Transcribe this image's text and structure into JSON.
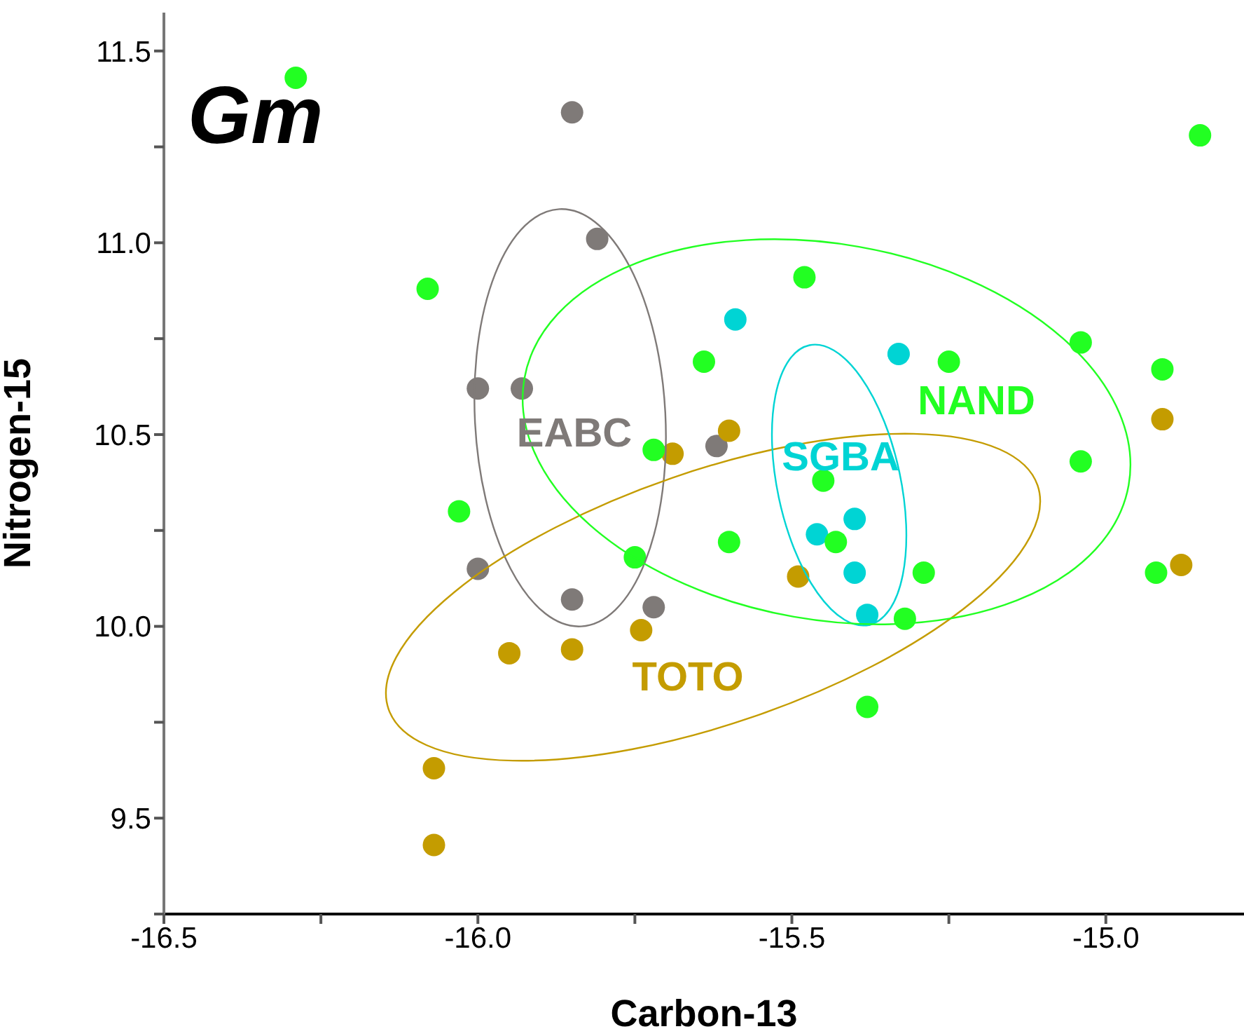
{
  "chart_data": {
    "type": "scatter",
    "title": "Gm",
    "xlabel": "Carbon-13",
    "ylabel": "Nitrogen-15",
    "xlim": [
      -16.5,
      -14.78
    ],
    "ylim": [
      9.25,
      11.6
    ],
    "xticks": [
      -16.5,
      {
        "value": -16.25,
        "label": null
      },
      {
        "value": -16,
        "label": "-16.0"
      },
      {
        "value": -15.75,
        "label": null
      },
      -15.5,
      {
        "value": -15.25,
        "label": null
      },
      {
        "value": -15,
        "label": "-15.0"
      }
    ],
    "yticks": [
      {
        "value": 9.25,
        "label": null
      },
      9.5,
      {
        "value": 9.75,
        "label": null
      },
      {
        "value": 10,
        "label": "10.0"
      },
      {
        "value": 10.25,
        "label": null
      },
      10.5,
      {
        "value": 10.75,
        "label": null
      },
      {
        "value": 11,
        "label": "11.0"
      },
      {
        "value": 11.25,
        "label": null
      },
      11.5
    ],
    "grid": false,
    "legend": false,
    "marker": "circle",
    "series": [
      {
        "name": "EABC",
        "color": "#7f7a78",
        "x": [
          -15.85,
          -15.81,
          -16.0,
          -15.93,
          -16.0,
          -15.85,
          -15.72,
          -15.62
        ],
        "values": [
          11.34,
          11.01,
          10.62,
          10.62,
          10.15,
          10.07,
          10.05,
          10.47
        ]
      },
      {
        "name": "TOTO",
        "color": "#c49c00",
        "x": [
          -15.69,
          -15.6,
          -14.91,
          -15.74,
          -15.95,
          -15.85,
          -16.07,
          -16.07,
          -15.49,
          -14.88
        ],
        "values": [
          10.45,
          10.51,
          10.54,
          9.99,
          9.93,
          9.94,
          9.63,
          9.43,
          10.13,
          10.16
        ]
      },
      {
        "name": "SGBA",
        "color": "#00d4d4",
        "x": [
          -15.59,
          -15.33,
          -15.4,
          -15.46,
          -15.4,
          -15.38
        ],
        "values": [
          10.8,
          10.71,
          10.28,
          10.24,
          10.14,
          10.03
        ]
      },
      {
        "name": "NAND",
        "color": "#22ff22",
        "x": [
          -16.29,
          -16.08,
          -16.03,
          -15.72,
          -15.75,
          -15.6,
          -15.64,
          -15.48,
          -15.45,
          -15.43,
          -15.38,
          -15.32,
          -15.29,
          -15.25,
          -15.04,
          -15.04,
          -14.91,
          -14.92,
          -14.85
        ],
        "values": [
          11.43,
          10.88,
          10.3,
          10.46,
          10.18,
          10.22,
          10.69,
          10.91,
          10.38,
          10.22,
          9.79,
          10.02,
          10.14,
          10.69,
          10.74,
          10.43,
          10.67,
          10.14,
          11.28
        ]
      }
    ]
  }
}
